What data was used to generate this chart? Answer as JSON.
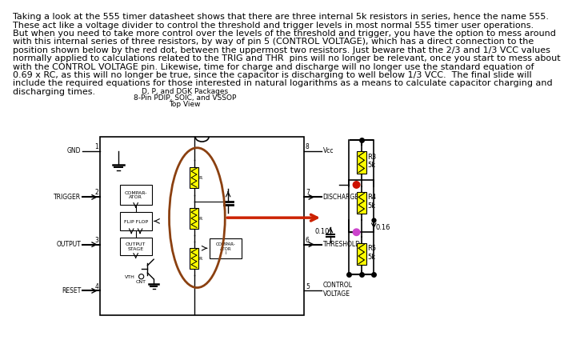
{
  "text_lines": [
    "Taking a look at the 555 timer datasheet shows that there are three internal 5k resistors in series, hence the name 555.",
    "These act like a voltage divider to control the threshold and trigger levels in most normal 555 timer user operations.",
    "But when you need to take more control over the levels of the threshold and trigger, you have the option to mess around",
    "with this internal series of three resistors, by way of pin 5 (CONTROL VOLTAGE), which has a direct connection to the",
    "position shown below by the red dot, between the uppermost two resistors. Just beware that the 2/3 and 1/3 VCC values",
    "normally applied to calculations related to the TRIG and THR  pins will no longer be relevant, once you start to mess about",
    "with the CONTROL VOLTAGE pin. Likewise, time for charge and discharge will no longer use the standard equation of",
    "0.69 x RC, as this will no longer be true, since the capacitor is discharging to well below 1/3 VCC.  The final slide will",
    "include the required equations for those interested in natural logarithms as a means to calculate capacitor charging and",
    "discharging times."
  ],
  "pkg_line1": "D, P, and DGK Packages",
  "pkg_line2": "8-Pin PDIP, SOIC, and VSSOP",
  "pkg_line3": "Top View",
  "bg_color": "#ffffff",
  "text_color": "#000000",
  "fig_width": 7.2,
  "fig_height": 5.4
}
